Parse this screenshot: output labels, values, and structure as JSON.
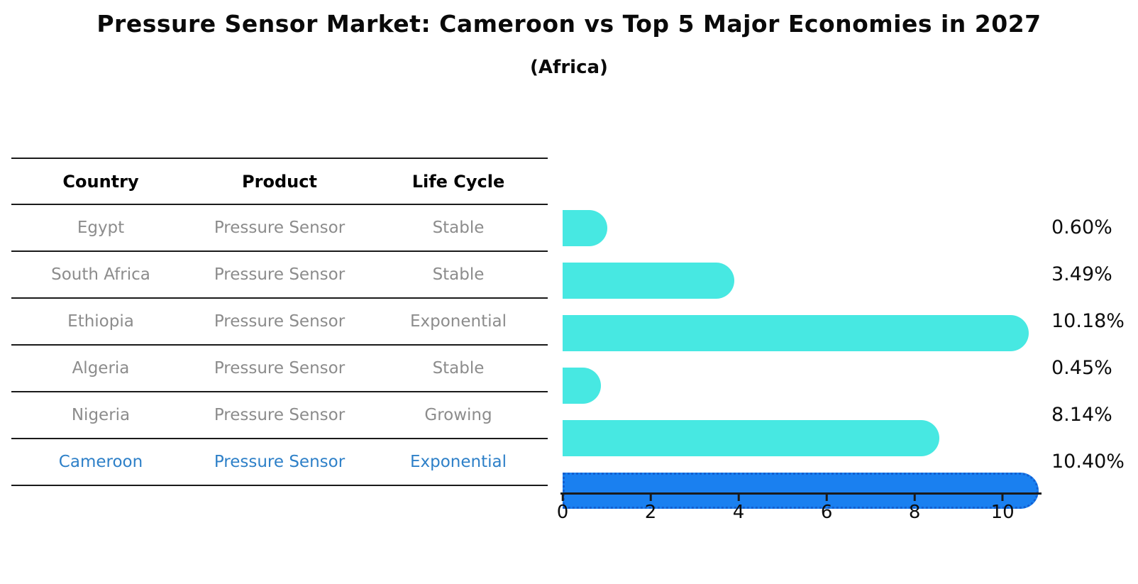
{
  "title": "Pressure Sensor Market: Cameroon vs Top 5 Major Economies in 2027",
  "subtitle": "(Africa)",
  "table": {
    "headers": [
      "Country",
      "Product",
      "Life Cycle"
    ],
    "rows": [
      {
        "country": "Egypt",
        "product": "Pressure Sensor",
        "life_cycle": "Stable",
        "highlight": false
      },
      {
        "country": "South Africa",
        "product": "Pressure Sensor",
        "life_cycle": "Stable",
        "highlight": false
      },
      {
        "country": "Ethiopia",
        "product": "Pressure Sensor",
        "life_cycle": "Exponential",
        "highlight": false
      },
      {
        "country": "Algeria",
        "product": "Pressure Sensor",
        "life_cycle": "Stable",
        "highlight": false
      },
      {
        "country": "Nigeria",
        "product": "Pressure Sensor",
        "life_cycle": "Growing",
        "highlight": false
      },
      {
        "country": "Cameroon",
        "product": "Pressure Sensor",
        "life_cycle": "Exponential",
        "highlight": true
      }
    ]
  },
  "chart_data": {
    "type": "bar",
    "orientation": "horizontal",
    "title": "Pressure Sensor Market: Cameroon vs Top 5 Major Economies in 2027 (Africa)",
    "categories": [
      "Egypt",
      "South Africa",
      "Ethiopia",
      "Algeria",
      "Nigeria",
      "Cameroon"
    ],
    "values": [
      0.6,
      3.49,
      10.18,
      0.45,
      8.14,
      10.4
    ],
    "value_labels": [
      "0.60%",
      "3.49%",
      "10.18%",
      "0.45%",
      "8.14%",
      "10.40%"
    ],
    "xticks": [
      "0",
      "2",
      "4",
      "6",
      "8",
      "10"
    ],
    "xtick_values": [
      0,
      2,
      4,
      6,
      8,
      10
    ],
    "xlim": [
      0,
      10.9
    ],
    "grid": false,
    "legend": "none",
    "highlighted_category": "Cameroon",
    "colors": {
      "bar": "#47e8e2",
      "highlight_bar": "#1a80f0",
      "highlight_border": "#135fd0",
      "highlight_text": "#2e80c8",
      "cell_text": "#8c8c8c"
    }
  }
}
